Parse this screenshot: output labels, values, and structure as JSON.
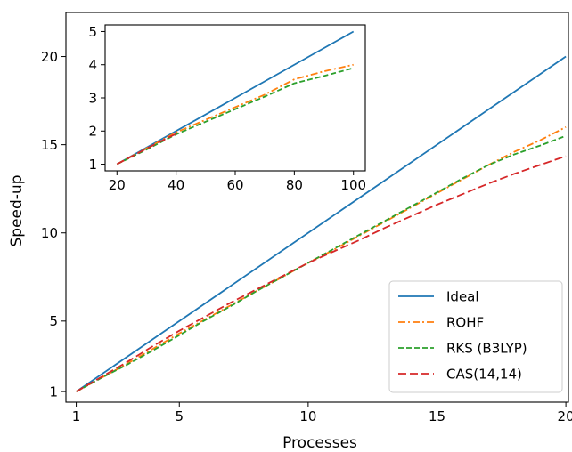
{
  "chart_data": [
    {
      "type": "line",
      "xlabel": "Processes",
      "ylabel": "Speed-up",
      "xlim": [
        0.6,
        20.1
      ],
      "ylim": [
        0.4,
        22.5
      ],
      "xticks": [
        1,
        5,
        10,
        15,
        20
      ],
      "yticks": [
        1,
        5,
        10,
        15,
        20
      ],
      "legend_position": "lower-right",
      "series": [
        {
          "name": "Ideal",
          "color": "#1f77b4",
          "dash": "solid",
          "x": [
            1,
            20
          ],
          "y": [
            1,
            20
          ]
        },
        {
          "name": "ROHF",
          "color": "#ff7f0e",
          "dash": "dashdot",
          "x": [
            1,
            2,
            3,
            4,
            5,
            6,
            7,
            8,
            9,
            10,
            11,
            12,
            13,
            14,
            15,
            16,
            17,
            18,
            19,
            20
          ],
          "y": [
            1,
            1.8,
            2.6,
            3.45,
            4.3,
            5.1,
            5.9,
            6.7,
            7.5,
            8.3,
            9.05,
            9.85,
            10.65,
            11.45,
            12.25,
            13.05,
            13.85,
            14.6,
            15.25,
            16.0
          ]
        },
        {
          "name": "RKS (B3LYP)",
          "color": "#2ca02c",
          "dash": "dashed",
          "x": [
            1,
            2,
            3,
            4,
            5,
            6,
            7,
            8,
            9,
            10,
            11,
            12,
            13,
            14,
            15,
            16,
            17,
            18,
            19,
            20
          ],
          "y": [
            1,
            1.8,
            2.55,
            3.35,
            4.2,
            5.05,
            5.85,
            6.7,
            7.5,
            8.3,
            9.1,
            9.9,
            10.7,
            11.5,
            12.3,
            13.1,
            13.85,
            14.45,
            14.95,
            15.5
          ]
        },
        {
          "name": "CAS(14,14)",
          "color": "#d62728",
          "dash": "longdash",
          "x": [
            1,
            2,
            3,
            4,
            5,
            6,
            7,
            8,
            9,
            10,
            11,
            12,
            13,
            14,
            15,
            16,
            17,
            18,
            19,
            20
          ],
          "y": [
            1,
            1.85,
            2.7,
            3.6,
            4.45,
            5.25,
            6.05,
            6.8,
            7.55,
            8.3,
            8.95,
            9.6,
            10.3,
            10.95,
            11.6,
            12.2,
            12.8,
            13.35,
            13.85,
            14.35
          ]
        }
      ]
    },
    {
      "type": "line",
      "inset": true,
      "xlim": [
        16,
        104
      ],
      "ylim": [
        0.8,
        5.2
      ],
      "xticks": [
        20,
        40,
        60,
        80,
        100
      ],
      "yticks": [
        1,
        2,
        3,
        4,
        5
      ],
      "series": [
        {
          "name": "Ideal",
          "color": "#1f77b4",
          "dash": "solid",
          "x": [
            20,
            100
          ],
          "y": [
            1,
            5
          ]
        },
        {
          "name": "ROHF",
          "color": "#ff7f0e",
          "dash": "dashdot",
          "x": [
            20,
            30,
            40,
            50,
            60,
            70,
            80,
            90,
            100
          ],
          "y": [
            1,
            1.48,
            1.96,
            2.34,
            2.72,
            3.1,
            3.56,
            3.8,
            4.0
          ]
        },
        {
          "name": "RKS (B3LYP)",
          "color": "#2ca02c",
          "dash": "dashed",
          "x": [
            20,
            30,
            40,
            50,
            60,
            70,
            80,
            90,
            100
          ],
          "y": [
            1,
            1.44,
            1.9,
            2.28,
            2.66,
            3.04,
            3.44,
            3.66,
            3.9
          ]
        },
        {
          "name": "CAS(14,14)",
          "color": "#d62728",
          "dash": "longdash",
          "x": [
            20,
            30,
            40
          ],
          "y": [
            1,
            1.47,
            1.92
          ]
        }
      ]
    }
  ]
}
